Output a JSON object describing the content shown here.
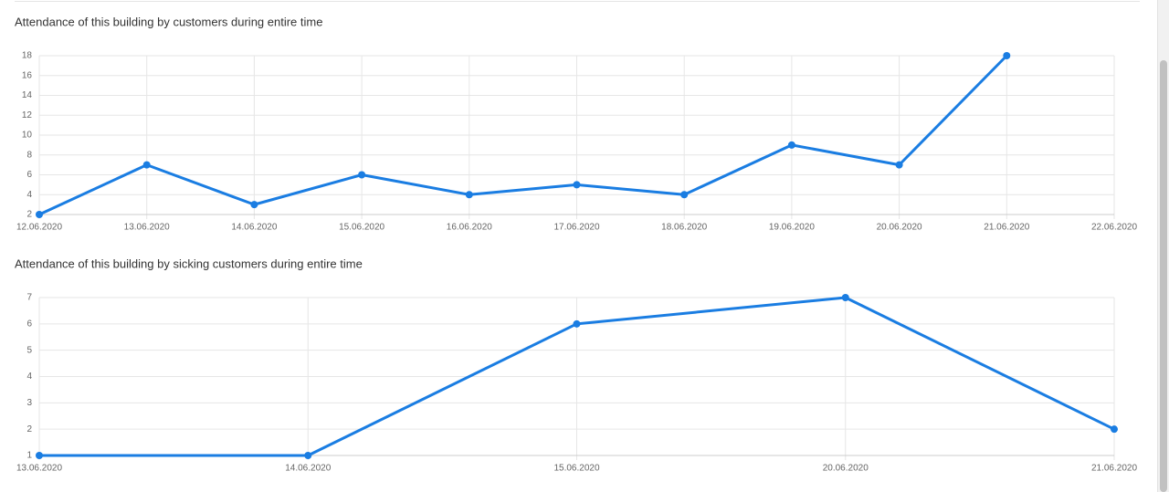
{
  "chart_data": [
    {
      "type": "line",
      "title": "Attendance of this building by customers during entire time",
      "categories": [
        "12.06.2020",
        "13.06.2020",
        "14.06.2020",
        "15.06.2020",
        "16.06.2020",
        "17.06.2020",
        "18.06.2020",
        "19.06.2020",
        "20.06.2020",
        "21.06.2020",
        "22.06.2020"
      ],
      "values": [
        2,
        7,
        3,
        6,
        4,
        5,
        4,
        9,
        7,
        18,
        null
      ],
      "color": "#1a7de2",
      "ylim": [
        2,
        18
      ],
      "yticks": [
        2,
        4,
        6,
        8,
        10,
        12,
        14,
        16,
        18
      ],
      "grid": true
    },
    {
      "type": "line",
      "title": "Attendance of this building by sicking customers during entire time",
      "categories": [
        "13.06.2020",
        "14.06.2020",
        "15.06.2020",
        "20.06.2020",
        "21.06.2020"
      ],
      "values": [
        1,
        1,
        6,
        7,
        2
      ],
      "color": "#1a7de2",
      "ylim": [
        1,
        7
      ],
      "yticks": [
        1,
        2,
        3,
        4,
        5,
        6,
        7
      ],
      "grid": true
    }
  ]
}
